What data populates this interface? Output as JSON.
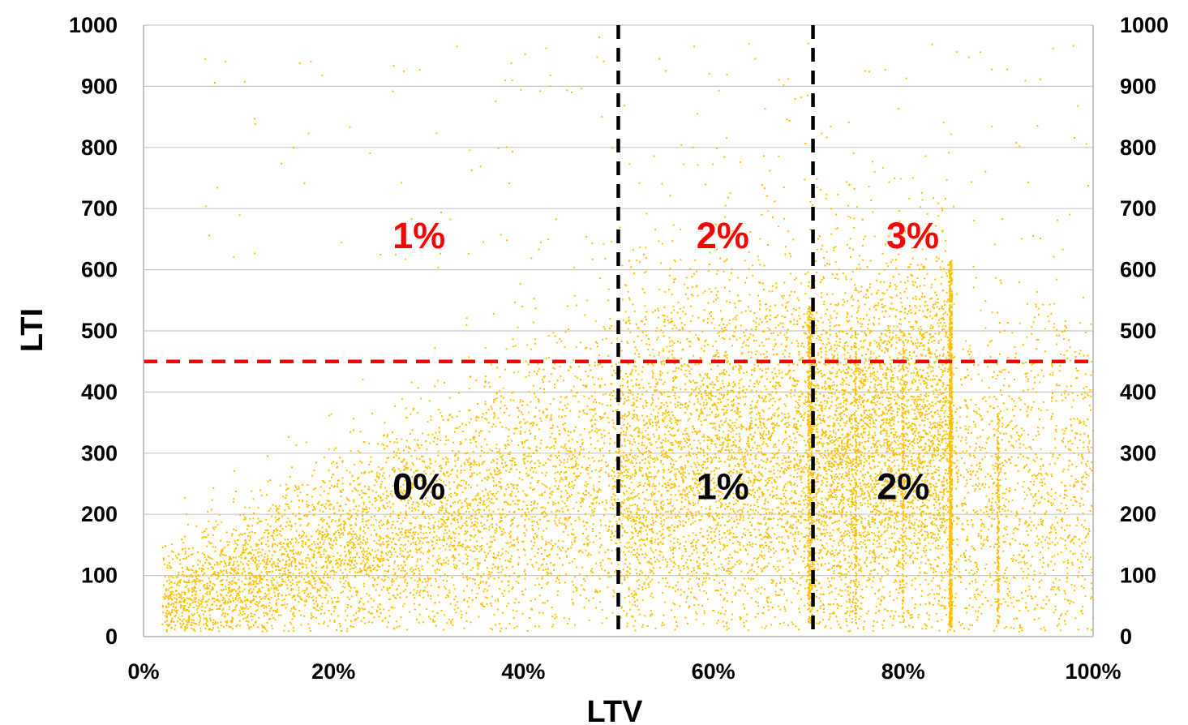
{
  "chart_data": {
    "type": "scatter",
    "title": "",
    "xlabel": "LTV",
    "ylabel": "LTI",
    "xlim": [
      0,
      100
    ],
    "ylim": [
      0,
      1000
    ],
    "x_unit": "%",
    "x_ticks": [
      "0%",
      "20%",
      "40%",
      "60%",
      "80%",
      "100%"
    ],
    "x_tick_values": [
      0,
      20,
      40,
      60,
      80,
      100
    ],
    "y_ticks": [
      "0",
      "100",
      "200",
      "300",
      "400",
      "500",
      "600",
      "700",
      "800",
      "900",
      "1000"
    ],
    "y_tick_values": [
      0,
      100,
      200,
      300,
      400,
      500,
      600,
      700,
      800,
      900,
      1000
    ],
    "y_axis_right": true,
    "grid": "horizontal",
    "legend": "none",
    "point_color": "#FFC000",
    "series": [
      {
        "note": "dense scatter of loans; approximate distribution",
        "points": [
          [
            2,
            20
          ],
          [
            3,
            40
          ],
          [
            4,
            15
          ],
          [
            5,
            60
          ],
          [
            6,
            30
          ],
          [
            7,
            90
          ],
          [
            8,
            45
          ],
          [
            9,
            120
          ],
          [
            10,
            70
          ],
          [
            11,
            35
          ],
          [
            12,
            150
          ],
          [
            13,
            85
          ],
          [
            14,
            55
          ],
          [
            15,
            180
          ],
          [
            16,
            110
          ],
          [
            17,
            75
          ],
          [
            18,
            210
          ],
          [
            19,
            140
          ],
          [
            20,
            95
          ],
          [
            21,
            240
          ],
          [
            22,
            160
          ],
          [
            23,
            120
          ],
          [
            24,
            270
          ],
          [
            25,
            190
          ],
          [
            26,
            130
          ],
          [
            27,
            300
          ],
          [
            28,
            210
          ],
          [
            29,
            160
          ],
          [
            30,
            330
          ],
          [
            31,
            230
          ],
          [
            32,
            180
          ],
          [
            33,
            360
          ],
          [
            34,
            250
          ],
          [
            35,
            200
          ],
          [
            36,
            380
          ],
          [
            37,
            270
          ],
          [
            38,
            220
          ],
          [
            39,
            400
          ],
          [
            40,
            290
          ],
          [
            41,
            240
          ],
          [
            42,
            420
          ],
          [
            43,
            310
          ],
          [
            44,
            260
          ],
          [
            45,
            440
          ],
          [
            46,
            330
          ],
          [
            47,
            280
          ],
          [
            48,
            460
          ],
          [
            49,
            350
          ],
          [
            50,
            300
          ],
          [
            51,
            480
          ],
          [
            52,
            360
          ],
          [
            53,
            310
          ],
          [
            54,
            500
          ],
          [
            55,
            370
          ],
          [
            56,
            320
          ],
          [
            57,
            510
          ],
          [
            58,
            380
          ],
          [
            59,
            330
          ],
          [
            60,
            520
          ],
          [
            61,
            390
          ],
          [
            62,
            340
          ],
          [
            63,
            530
          ],
          [
            64,
            400
          ],
          [
            65,
            350
          ],
          [
            66,
            540
          ],
          [
            67,
            410
          ],
          [
            68,
            360
          ],
          [
            69,
            550
          ],
          [
            70,
            420
          ],
          [
            71,
            370
          ],
          [
            72,
            560
          ],
          [
            73,
            430
          ],
          [
            74,
            380
          ],
          [
            75,
            570
          ],
          [
            76,
            440
          ],
          [
            77,
            390
          ],
          [
            78,
            580
          ],
          [
            79,
            450
          ],
          [
            80,
            400
          ],
          [
            81,
            590
          ],
          [
            82,
            460
          ],
          [
            83,
            410
          ],
          [
            84,
            600
          ],
          [
            85,
            470
          ],
          [
            86,
            300
          ],
          [
            88,
            250
          ],
          [
            90,
            350
          ],
          [
            92,
            200
          ],
          [
            94,
            400
          ],
          [
            96,
            150
          ],
          [
            98,
            300
          ],
          [
            100,
            250
          ],
          [
            33,
            965
          ],
          [
            48,
            980
          ],
          [
            58,
            965
          ],
          [
            70,
            970
          ],
          [
            55,
            925
          ],
          [
            76,
            925
          ]
        ]
      }
    ],
    "threshold_lines": [
      {
        "orientation": "vertical",
        "x": 50,
        "color": "#000000",
        "style": "dashed"
      },
      {
        "orientation": "vertical",
        "x": 70.5,
        "color": "#000000",
        "style": "dashed"
      },
      {
        "orientation": "horizontal",
        "y": 450,
        "color": "#FF0000",
        "style": "dashed"
      }
    ],
    "annotations": [
      {
        "text": "1%",
        "x": 29,
        "y": 635,
        "color": "#FF0000"
      },
      {
        "text": "2%",
        "x": 61,
        "y": 635,
        "color": "#FF0000"
      },
      {
        "text": "3%",
        "x": 81,
        "y": 635,
        "color": "#FF0000"
      },
      {
        "text": "0%",
        "x": 29,
        "y": 225,
        "color": "#000000"
      },
      {
        "text": "1%",
        "x": 61,
        "y": 225,
        "color": "#000000"
      },
      {
        "text": "2%",
        "x": 80,
        "y": 225,
        "color": "#000000"
      }
    ]
  }
}
